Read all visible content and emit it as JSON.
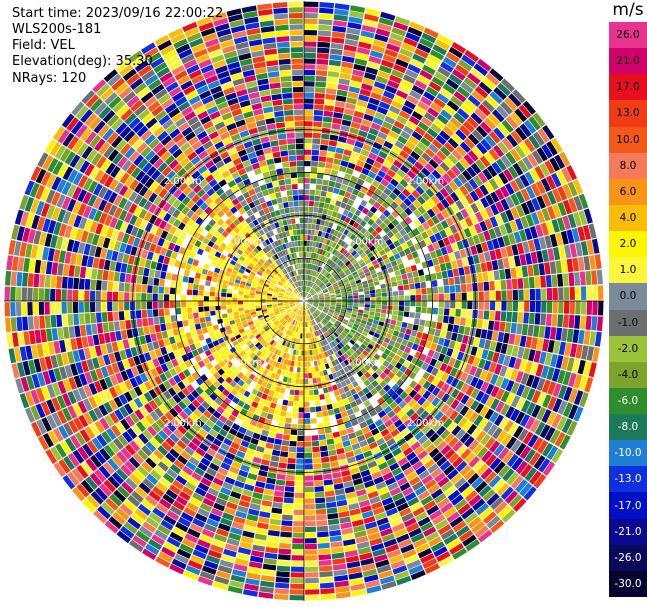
{
  "header": {
    "start_time": "Start time: 2023/09/16 22:00:22",
    "instrument": "WLS200s-181",
    "field": "Field: VEL",
    "elevation": "Elevation(deg): 35.30",
    "nrays": "NRays: 120"
  },
  "colorbar": {
    "unit": "m/s",
    "levels": [
      {
        "label": "26.0",
        "color": "#e8338f"
      },
      {
        "label": "21.0",
        "color": "#d2006a"
      },
      {
        "label": "17.0",
        "color": "#e8101e"
      },
      {
        "label": "13.0",
        "color": "#f03c14"
      },
      {
        "label": "10.0",
        "color": "#f35a1a"
      },
      {
        "label": "8.0",
        "color": "#f47a5a"
      },
      {
        "label": "6.0",
        "color": "#f89418"
      },
      {
        "label": "4.0",
        "color": "#f9bd08"
      },
      {
        "label": "2.0",
        "color": "#fef600"
      },
      {
        "label": "1.0",
        "color": "#fbf63c"
      },
      {
        "label": "0.0",
        "color": "#7a8a99"
      },
      {
        "label": "-1.0",
        "color": "#6b6f70"
      },
      {
        "label": "-2.0",
        "color": "#9cc23a"
      },
      {
        "label": "-4.0",
        "color": "#7ea32d"
      },
      {
        "label": "-6.0",
        "color": "#2e8e2e"
      },
      {
        "label": "-8.0",
        "color": "#1c7a5a"
      },
      {
        "label": "-10.0",
        "color": "#1f7fd6"
      },
      {
        "label": "-13.0",
        "color": "#1030e0"
      },
      {
        "label": "-17.0",
        "color": "#0010c8"
      },
      {
        "label": "-21.0",
        "color": "#0a0a90"
      },
      {
        "label": "-26.0",
        "color": "#0a0a5a"
      },
      {
        "label": "-30.0",
        "color": "#050530"
      }
    ]
  },
  "chart_data": {
    "type": "heatmap",
    "projection": "polar PPI",
    "field": "VEL",
    "unit": "m/s",
    "nrays": 120,
    "elevation_deg": 35.3,
    "range_rings_km": [
      1.0,
      2.0
    ],
    "ring_labels": [
      "1.00km",
      "2.00km"
    ],
    "max_range_km": 3.5,
    "value_range": [
      -30.0,
      26.0
    ],
    "pattern": "near-range: positive (yellow/orange) to the west and north-west, negative (grey/green) to the east and south-east; far-range: noisy mixed colors"
  }
}
